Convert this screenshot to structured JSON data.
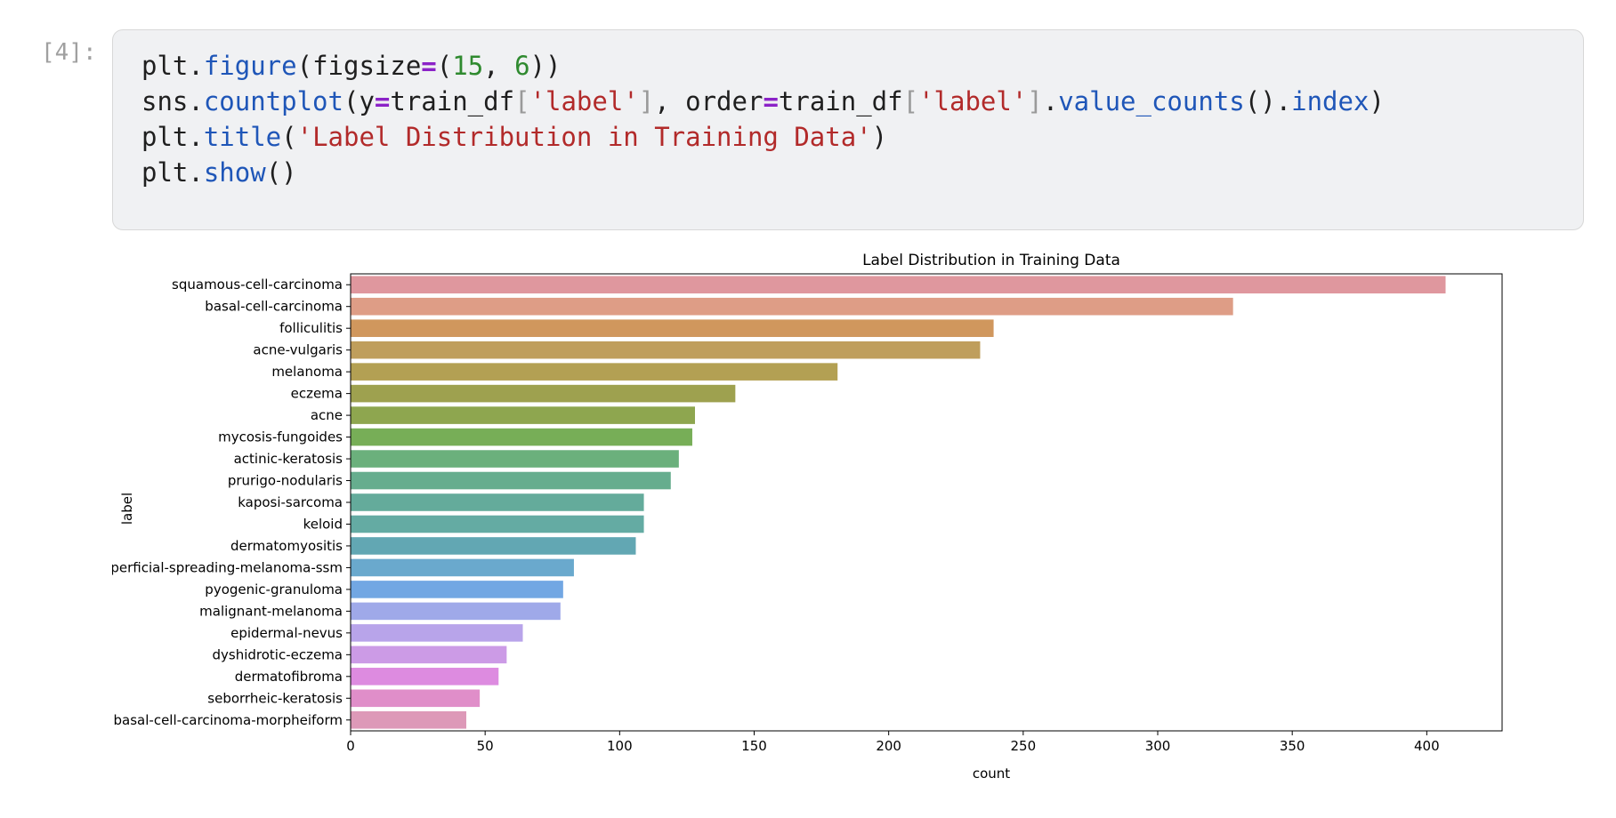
{
  "cell": {
    "prompt": "[4]:",
    "code_lines": [
      [
        {
          "t": "plt.",
          "c": "plain"
        },
        {
          "t": "figure",
          "c": "attr"
        },
        {
          "t": "(figsize",
          "c": "plain"
        },
        {
          "t": "=",
          "c": "op"
        },
        {
          "t": "(",
          "c": "plain"
        },
        {
          "t": "15",
          "c": "num"
        },
        {
          "t": ", ",
          "c": "plain"
        },
        {
          "t": "6",
          "c": "num"
        },
        {
          "t": "))",
          "c": "plain"
        }
      ],
      [
        {
          "t": "sns.",
          "c": "plain"
        },
        {
          "t": "countplot",
          "c": "attr"
        },
        {
          "t": "(y",
          "c": "plain"
        },
        {
          "t": "=",
          "c": "op"
        },
        {
          "t": "train_df",
          "c": "plain"
        },
        {
          "t": "[",
          "c": "br"
        },
        {
          "t": "'label'",
          "c": "str"
        },
        {
          "t": "]",
          "c": "br"
        },
        {
          "t": ", order",
          "c": "plain"
        },
        {
          "t": "=",
          "c": "op"
        },
        {
          "t": "train_df",
          "c": "plain"
        },
        {
          "t": "[",
          "c": "br"
        },
        {
          "t": "'label'",
          "c": "str"
        },
        {
          "t": "]",
          "c": "br"
        },
        {
          "t": ".",
          "c": "plain"
        },
        {
          "t": "value_counts",
          "c": "attr"
        },
        {
          "t": "().",
          "c": "plain"
        },
        {
          "t": "index",
          "c": "attr"
        },
        {
          "t": ")",
          "c": "plain"
        }
      ],
      [
        {
          "t": "plt.",
          "c": "plain"
        },
        {
          "t": "title",
          "c": "attr"
        },
        {
          "t": "(",
          "c": "plain"
        },
        {
          "t": "'Label Distribution in Training Data'",
          "c": "str"
        },
        {
          "t": ")",
          "c": "plain"
        }
      ],
      [
        {
          "t": "plt.",
          "c": "plain"
        },
        {
          "t": "show",
          "c": "attr"
        },
        {
          "t": "()",
          "c": "plain"
        }
      ]
    ]
  },
  "colors": {
    "attr": "#1f56b8",
    "op": "#8b22c7",
    "num": "#2f8a2f",
    "str": "#b22a2a",
    "br": "#9a9a9a",
    "plain": "#1f1f1f"
  },
  "chart_data": {
    "type": "bar",
    "orientation": "horizontal",
    "title": "Label Distribution in Training Data",
    "xlabel": "count",
    "ylabel": "label",
    "xlim": [
      0,
      428
    ],
    "xticks": [
      0,
      50,
      100,
      150,
      200,
      250,
      300,
      350,
      400
    ],
    "grid": false,
    "categories": [
      "squamous-cell-carcinoma",
      "basal-cell-carcinoma",
      "folliculitis",
      "acne-vulgaris",
      "melanoma",
      "eczema",
      "acne",
      "mycosis-fungoides",
      "actinic-keratosis",
      "prurigo-nodularis",
      "kaposi-sarcoma",
      "keloid",
      "dermatomyositis",
      "superficial-spreading-melanoma-ssm",
      "pyogenic-granuloma",
      "malignant-melanoma",
      "epidermal-nevus",
      "dyshidrotic-eczema",
      "dermatofibroma",
      "seborrheic-keratosis",
      "basal-cell-carcinoma-morpheiform"
    ],
    "values": [
      407,
      328,
      239,
      234,
      181,
      143,
      128,
      127,
      122,
      119,
      109,
      109,
      106,
      83,
      79,
      78,
      64,
      58,
      55,
      48,
      43
    ],
    "bar_colors": [
      "#df979e",
      "#de9d86",
      "#d0975d",
      "#bf9e5c",
      "#b3a053",
      "#9ea14f",
      "#8ea64f",
      "#77ae57",
      "#6bb07c",
      "#66ad8e",
      "#64ab9b",
      "#64aba3",
      "#62a7b3",
      "#6aa9cd",
      "#72a7e3",
      "#9fa9e9",
      "#b8a4ea",
      "#cc9be6",
      "#dd8be0",
      "#e08ec9",
      "#dd99b8"
    ]
  }
}
